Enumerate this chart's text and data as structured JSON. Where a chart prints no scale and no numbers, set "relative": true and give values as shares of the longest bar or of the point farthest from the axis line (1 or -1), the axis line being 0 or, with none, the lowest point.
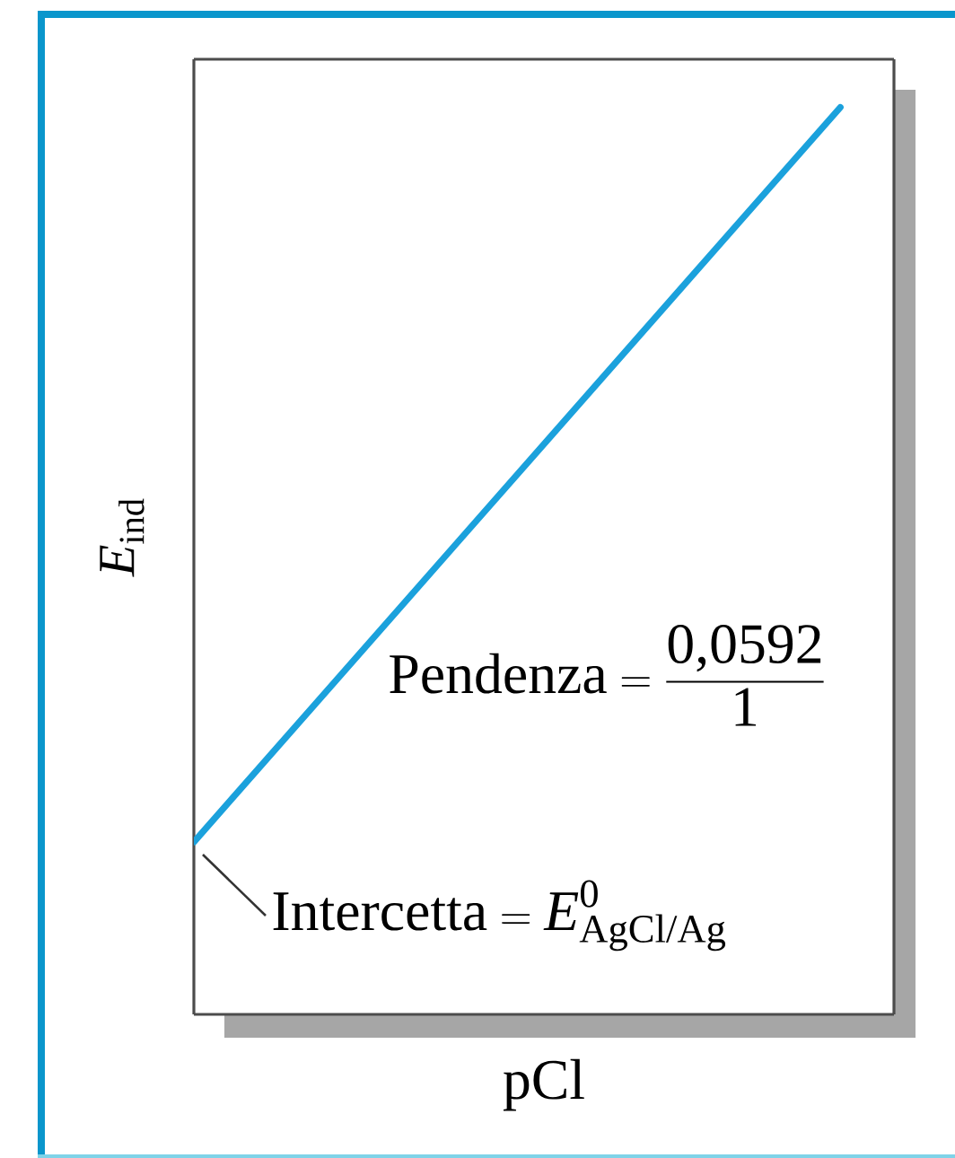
{
  "chart_data": {
    "type": "line",
    "xlabel": "pCl",
    "ylabel": "*E*$_{ind}$",
    "categories": [
      null,
      null
    ],
    "series": [
      {
        "color": "#1ba1dc",
        "values": [
          0.19,
          1
        ]
      }
    ],
    "relative": true,
    "annotations": [
      "\\text{Intercetta} = \\textit{E}^{\\text{0}}_{\\text{AgCl/Ag}}",
      "\\text{Pendenza} = \\frac{\\text{0,0592}}{\\text{1}}"
    ]
  }
}
